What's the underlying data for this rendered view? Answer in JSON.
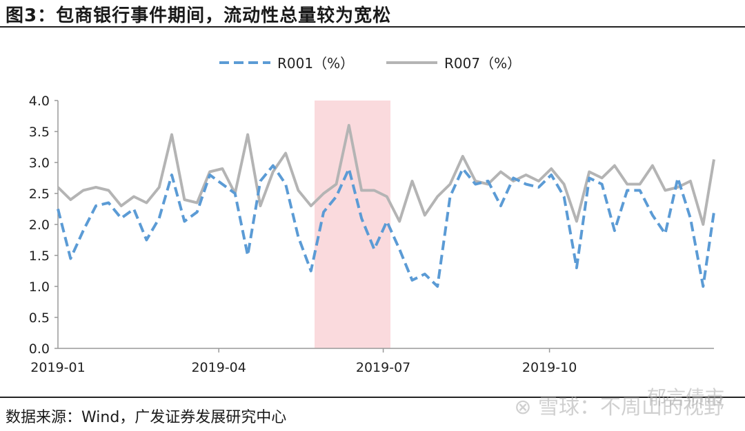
{
  "title": "图3：包商银行事件期间，流动性总量较为宽松",
  "source": "数据来源：Wind，广发证券发展研究中心",
  "watermark": "⊗ 雪球：不周山的视野",
  "watermark2": "郁言债市",
  "chart_data": {
    "type": "line",
    "ylim": [
      0,
      4.0
    ],
    "yticks": [
      "0.0",
      "0.5",
      "1.0",
      "1.5",
      "2.0",
      "2.5",
      "3.0",
      "3.5",
      "4.0"
    ],
    "xticks": [
      "2019-01",
      "2019-04",
      "2019-07",
      "2019-10"
    ],
    "x": [
      "2019-01-02",
      "2019-01-09",
      "2019-01-16",
      "2019-01-23",
      "2019-01-30",
      "2019-02-06",
      "2019-02-13",
      "2019-02-20",
      "2019-02-27",
      "2019-03-06",
      "2019-03-13",
      "2019-03-20",
      "2019-03-27",
      "2019-04-03",
      "2019-04-10",
      "2019-04-17",
      "2019-04-24",
      "2019-05-01",
      "2019-05-08",
      "2019-05-15",
      "2019-05-22",
      "2019-05-29",
      "2019-06-05",
      "2019-06-12",
      "2019-06-19",
      "2019-06-26",
      "2019-07-03",
      "2019-07-10",
      "2019-07-17",
      "2019-07-24",
      "2019-07-31",
      "2019-08-07",
      "2019-08-14",
      "2019-08-21",
      "2019-08-28",
      "2019-09-04",
      "2019-09-11",
      "2019-09-18",
      "2019-09-25",
      "2019-10-02",
      "2019-10-09",
      "2019-10-16",
      "2019-10-23",
      "2019-10-30",
      "2019-11-06",
      "2019-11-13",
      "2019-11-20",
      "2019-11-27",
      "2019-12-04",
      "2019-12-11",
      "2019-12-18",
      "2019-12-25",
      "2019-12-31"
    ],
    "highlight": {
      "from": "2019-05-24",
      "to": "2019-07-05"
    },
    "legend_position": "top",
    "series": [
      {
        "name": "R001（%）",
        "color": "#5B9BD5",
        "dash": true,
        "values": [
          2.25,
          1.45,
          1.9,
          2.3,
          2.35,
          2.1,
          2.25,
          1.75,
          2.1,
          2.8,
          2.05,
          2.2,
          2.8,
          2.65,
          2.5,
          1.5,
          2.7,
          2.95,
          2.65,
          1.8,
          1.25,
          2.2,
          2.45,
          2.9,
          2.1,
          1.6,
          2.05,
          1.6,
          1.1,
          1.2,
          1.0,
          2.45,
          2.9,
          2.65,
          2.7,
          2.3,
          2.75,
          2.65,
          2.6,
          2.8,
          2.45,
          1.3,
          2.75,
          2.65,
          1.9,
          2.55,
          2.55,
          2.15,
          1.85,
          2.75,
          2.1,
          1.0,
          2.2
        ]
      },
      {
        "name": "R007（%）",
        "color": "#B4B4B4",
        "dash": false,
        "values": [
          2.6,
          2.4,
          2.55,
          2.6,
          2.55,
          2.3,
          2.45,
          2.35,
          2.6,
          3.45,
          2.4,
          2.35,
          2.85,
          2.9,
          2.5,
          3.45,
          2.3,
          2.85,
          3.15,
          2.55,
          2.3,
          2.5,
          2.65,
          3.6,
          2.55,
          2.55,
          2.45,
          2.05,
          2.7,
          2.15,
          2.45,
          2.65,
          3.1,
          2.7,
          2.65,
          2.85,
          2.7,
          2.8,
          2.7,
          2.9,
          2.65,
          2.05,
          2.85,
          2.75,
          2.95,
          2.65,
          2.65,
          2.95,
          2.55,
          2.6,
          2.7,
          2.0,
          3.05
        ]
      }
    ]
  }
}
